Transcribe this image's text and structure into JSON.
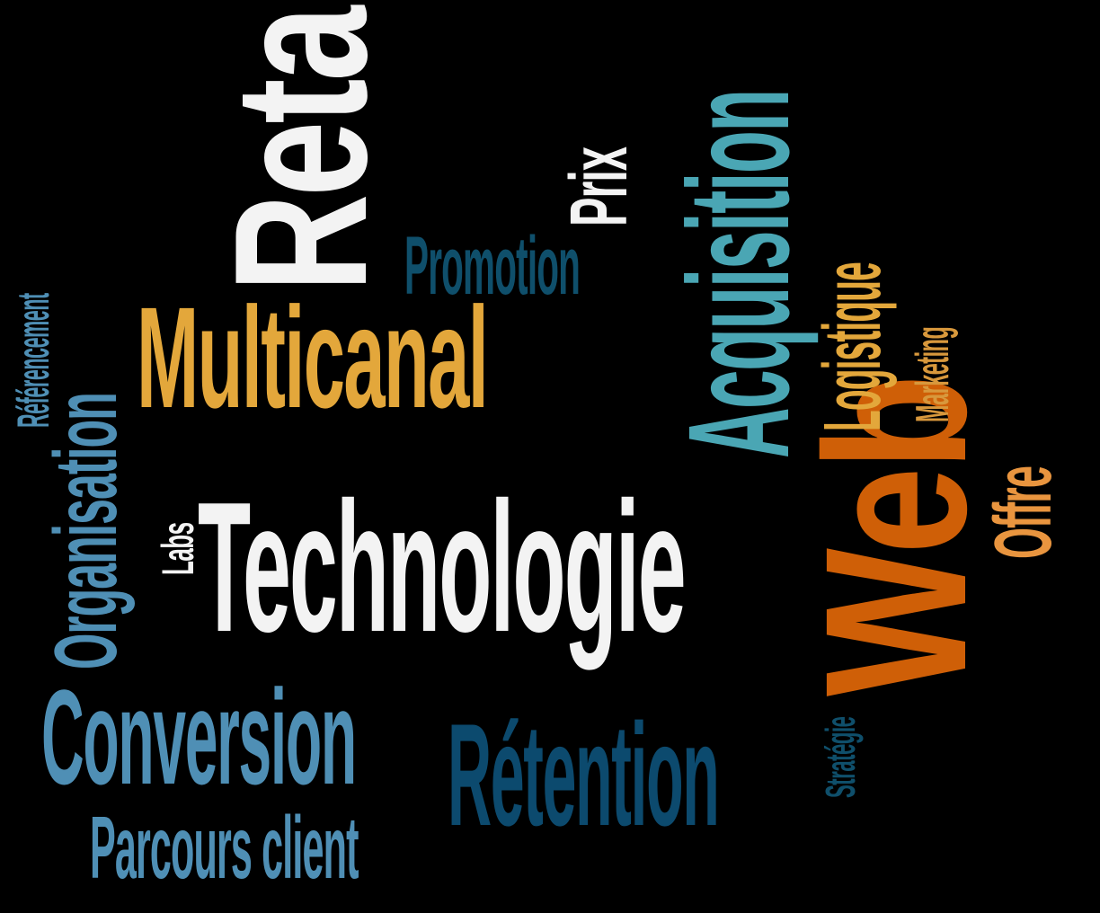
{
  "colors": {
    "background": "#000000",
    "white": "#f3f3f3",
    "gold": "#e3a73b",
    "teal": "#4aa6b4",
    "steel_blue": "#4f8fb5",
    "navy": "#0c4a6e",
    "dark_teal": "#0f4f6b",
    "orange": "#cf5f07",
    "light_orange": "#e9953f",
    "tan": "#d8983c"
  },
  "words": {
    "retail": "Retail",
    "multicanal": "Multicanal",
    "technologie": "Technologie",
    "web": "Web",
    "acquisition": "Acquisition",
    "conversion": "Conversion",
    "retention": "Rétention",
    "parcours_client": "Parcours client",
    "organisation": "Organisation",
    "promotion": "Promotion",
    "prix": "Prix",
    "logistique": "Logistique",
    "marketing": "Marketing",
    "offre": "Offre",
    "strategie": "Stratégie",
    "labs": "Labs",
    "referencement": "Référencement"
  }
}
